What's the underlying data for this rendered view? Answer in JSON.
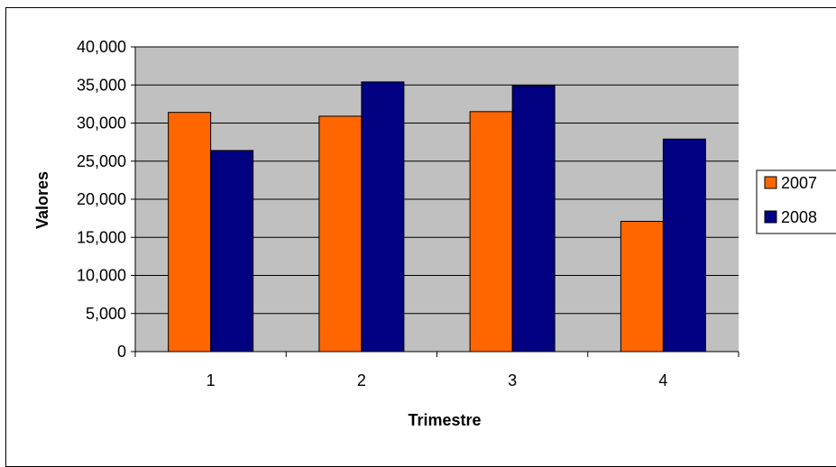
{
  "chart_data": {
    "type": "bar",
    "categories": [
      "1",
      "2",
      "3",
      "4"
    ],
    "series": [
      {
        "name": "2007",
        "color": "#ff6600",
        "values": [
          31400,
          30900,
          31500,
          17100
        ]
      },
      {
        "name": "2008",
        "color": "#000080",
        "values": [
          26400,
          35400,
          34900,
          27900
        ]
      }
    ],
    "xlabel": "Trimestre",
    "ylabel": "Valores",
    "ylim": [
      0,
      40000
    ],
    "yticks": [
      0,
      5000,
      10000,
      15000,
      20000,
      25000,
      30000,
      35000,
      40000
    ],
    "ytick_labels": [
      "0",
      "5,000",
      "10,000",
      "15,000",
      "20,000",
      "25,000",
      "30,000",
      "35,000",
      "40,000"
    ],
    "grid": true,
    "legend_position": "right",
    "plot_background": "#c0c0c0"
  }
}
